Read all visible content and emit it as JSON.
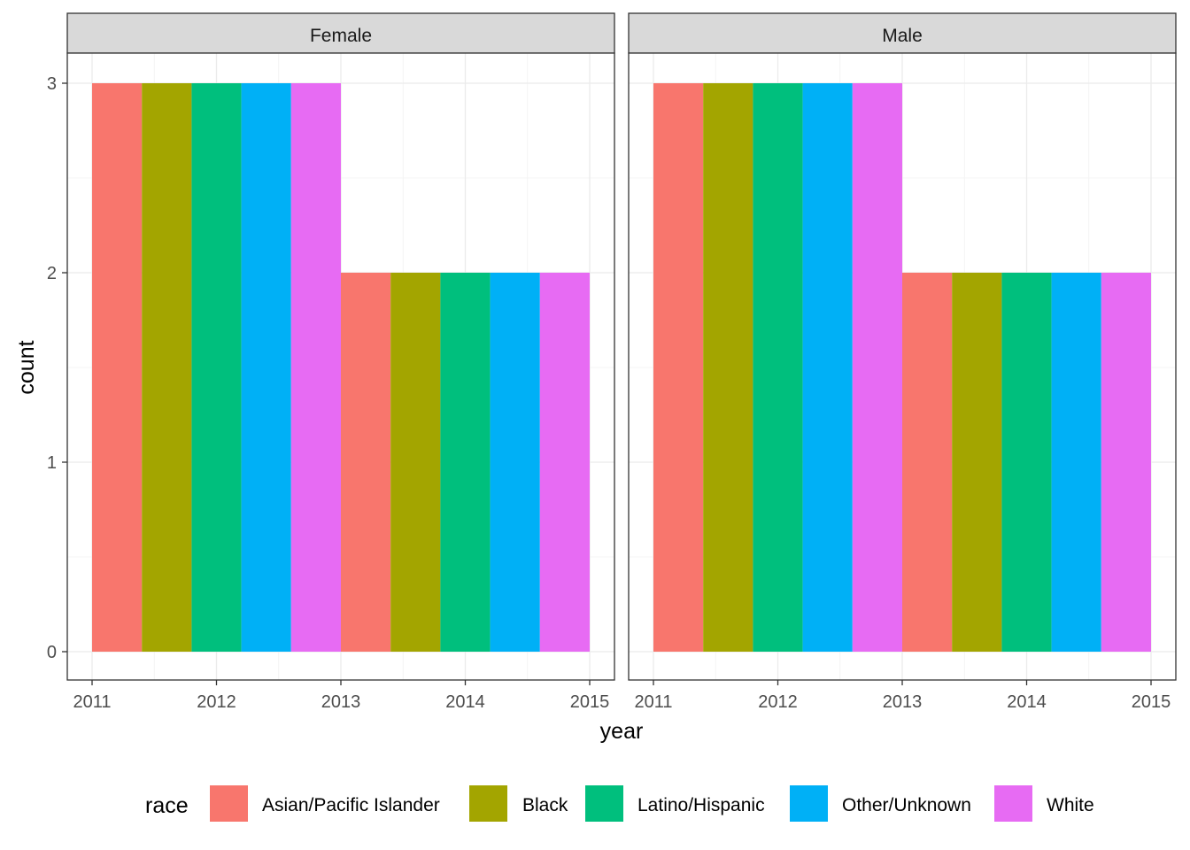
{
  "chart_data": {
    "type": "bar",
    "facets": [
      "Female",
      "Male"
    ],
    "x_ticks": [
      "2011",
      "2012",
      "2013",
      "2014",
      "2015"
    ],
    "y_ticks": [
      "0",
      "1",
      "2",
      "3"
    ],
    "xlabel": "year",
    "ylabel": "count",
    "xlim": [
      2011,
      2015
    ],
    "ylim": [
      0,
      3
    ],
    "grid": true,
    "legend_position": "bottom",
    "legend_title": "race",
    "series": [
      {
        "name": "Asian/Pacific Islander",
        "color": "#F8766D"
      },
      {
        "name": "Black",
        "color": "#A3A500"
      },
      {
        "name": "Latino/Hispanic",
        "color": "#00BF7D"
      },
      {
        "name": "Other/Unknown",
        "color": "#00B0F6"
      },
      {
        "name": "White",
        "color": "#E76BF3"
      }
    ],
    "bins": [
      {
        "x_start": 2011,
        "x_end": 2013
      },
      {
        "x_start": 2013,
        "x_end": 2015
      }
    ],
    "values": {
      "Female": {
        "Asian/Pacific Islander": [
          3,
          2
        ],
        "Black": [
          3,
          2
        ],
        "Latino/Hispanic": [
          3,
          2
        ],
        "Other/Unknown": [
          3,
          2
        ],
        "White": [
          3,
          2
        ]
      },
      "Male": {
        "Asian/Pacific Islander": [
          3,
          2
        ],
        "Black": [
          3,
          2
        ],
        "Latino/Hispanic": [
          3,
          2
        ],
        "Other/Unknown": [
          3,
          2
        ],
        "White": [
          3,
          2
        ]
      }
    }
  }
}
